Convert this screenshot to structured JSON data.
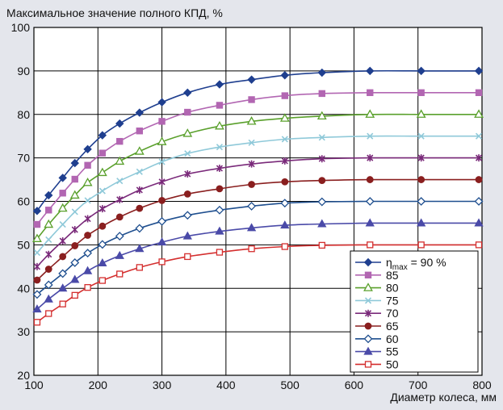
{
  "chart_data": {
    "type": "line",
    "title": "Максимальное значение полного КПД, %",
    "xlabel": "Диаметр колеса, мм",
    "ylabel": "",
    "xlim": [
      100,
      800
    ],
    "ylim": [
      20,
      100
    ],
    "x_ticks": [
      "100",
      "200",
      "300",
      "400",
      "500",
      "600",
      "700",
      "800"
    ],
    "y_ticks": [
      "20",
      "30",
      "40",
      "50",
      "60",
      "70",
      "80",
      "90",
      "100"
    ],
    "grid": true,
    "legend_position": "bottom-right",
    "legend_first": {
      "prefix": "η",
      "sub": "max",
      "suffix": " = 90 %"
    },
    "x": [
      105,
      123,
      145,
      164,
      184,
      207,
      234,
      265,
      300,
      340,
      390,
      440,
      492,
      550,
      625,
      705,
      795
    ],
    "series": [
      {
        "name": "90",
        "color": "#1f3f8f",
        "marker": "diamond-filled",
        "values": [
          57.8,
          61.4,
          65.4,
          68.8,
          72.0,
          75.2,
          77.9,
          80.4,
          82.8,
          85.0,
          86.9,
          88.0,
          89.0,
          89.6,
          90.0,
          90.0,
          90.0
        ]
      },
      {
        "name": "85",
        "color": "#b266b2",
        "marker": "square-filled",
        "values": [
          54.7,
          58.0,
          61.9,
          65.1,
          68.3,
          71.1,
          73.8,
          76.2,
          78.4,
          80.5,
          82.1,
          83.4,
          84.3,
          84.8,
          85.0,
          85.0,
          85.0
        ]
      },
      {
        "name": "80",
        "color": "#5aa02c",
        "marker": "triangle-open",
        "values": [
          51.4,
          54.7,
          58.4,
          61.4,
          64.3,
          66.6,
          69.2,
          71.5,
          73.7,
          75.6,
          77.3,
          78.4,
          79.1,
          79.6,
          80.0,
          80.0,
          80.0
        ]
      },
      {
        "name": "75",
        "color": "#8fc9d9",
        "marker": "x",
        "values": [
          48.2,
          51.2,
          54.7,
          57.6,
          60.2,
          62.4,
          64.7,
          66.8,
          69.1,
          71.0,
          72.5,
          73.5,
          74.3,
          74.7,
          75.0,
          75.0,
          75.0
        ]
      },
      {
        "name": "70",
        "color": "#7a2a7a",
        "marker": "star",
        "values": [
          45.0,
          47.8,
          50.9,
          53.5,
          56.0,
          58.3,
          60.4,
          62.6,
          64.5,
          66.3,
          67.6,
          68.6,
          69.3,
          69.8,
          70.0,
          70.0,
          70.0
        ]
      },
      {
        "name": "65",
        "color": "#8a1f1f",
        "marker": "circle-filled",
        "values": [
          41.9,
          44.4,
          47.3,
          49.8,
          52.2,
          54.3,
          56.4,
          58.4,
          60.2,
          61.7,
          62.9,
          63.9,
          64.5,
          64.8,
          65.0,
          65.0,
          65.0
        ]
      },
      {
        "name": "60",
        "color": "#1f4f8f",
        "marker": "diamond-open",
        "values": [
          38.6,
          40.8,
          43.4,
          45.9,
          48.1,
          50.1,
          52.0,
          53.8,
          55.4,
          56.8,
          58.0,
          58.9,
          59.6,
          59.9,
          60.0,
          60.0,
          60.0
        ]
      },
      {
        "name": "55",
        "color": "#4a4aa8",
        "marker": "triangle-filled",
        "values": [
          35.2,
          37.5,
          40.0,
          42.0,
          44.0,
          45.8,
          47.5,
          49.1,
          50.6,
          52.0,
          53.1,
          53.9,
          54.5,
          54.8,
          55.0,
          55.0,
          55.0
        ]
      },
      {
        "name": "50",
        "color": "#d42e2e",
        "marker": "square-open",
        "values": [
          32.2,
          34.2,
          36.4,
          38.4,
          40.2,
          41.8,
          43.3,
          44.8,
          46.1,
          47.3,
          48.3,
          49.1,
          49.6,
          49.9,
          50.0,
          50.0,
          50.0
        ]
      }
    ]
  }
}
